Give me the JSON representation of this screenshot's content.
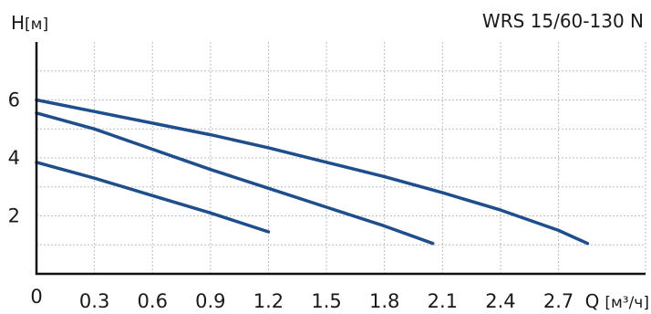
{
  "chart_data": {
    "type": "line",
    "title": "WRS 15/60-130 N",
    "ylabel": "H",
    "ylabel_unit": "[м]",
    "xlabel": "Q",
    "xlabel_unit": "[м³/ч]",
    "xlim": [
      0,
      3.15
    ],
    "ylim": [
      0,
      8
    ],
    "x_ticks": [
      0,
      0.3,
      0.6,
      0.9,
      1.2,
      1.5,
      1.8,
      2.1,
      2.4,
      2.7
    ],
    "x_tick_labels": [
      "0",
      "0.3",
      "0.6",
      "0.9",
      "1.2",
      "1.5",
      "1.8",
      "2.1",
      "2.4",
      "2.7"
    ],
    "y_ticks": [
      2,
      4,
      6
    ],
    "y_tick_labels": [
      "2",
      "4",
      "6"
    ],
    "grid": true,
    "line_color": "#1f4e8c",
    "series": [
      {
        "x": [
          0,
          0.3,
          0.6,
          0.9,
          1.2
        ],
        "y": [
          3.85,
          3.3,
          2.7,
          2.1,
          1.45
        ]
      },
      {
        "x": [
          0,
          0.3,
          0.6,
          0.9,
          1.2,
          1.5,
          1.8,
          2.05
        ],
        "y": [
          5.55,
          5.0,
          4.3,
          3.6,
          2.95,
          2.3,
          1.65,
          1.05
        ]
      },
      {
        "x": [
          0,
          0.3,
          0.6,
          0.9,
          1.2,
          1.5,
          1.8,
          2.1,
          2.4,
          2.7,
          2.85
        ],
        "y": [
          6.0,
          5.6,
          5.2,
          4.8,
          4.35,
          3.85,
          3.35,
          2.8,
          2.2,
          1.5,
          1.05
        ]
      }
    ]
  }
}
